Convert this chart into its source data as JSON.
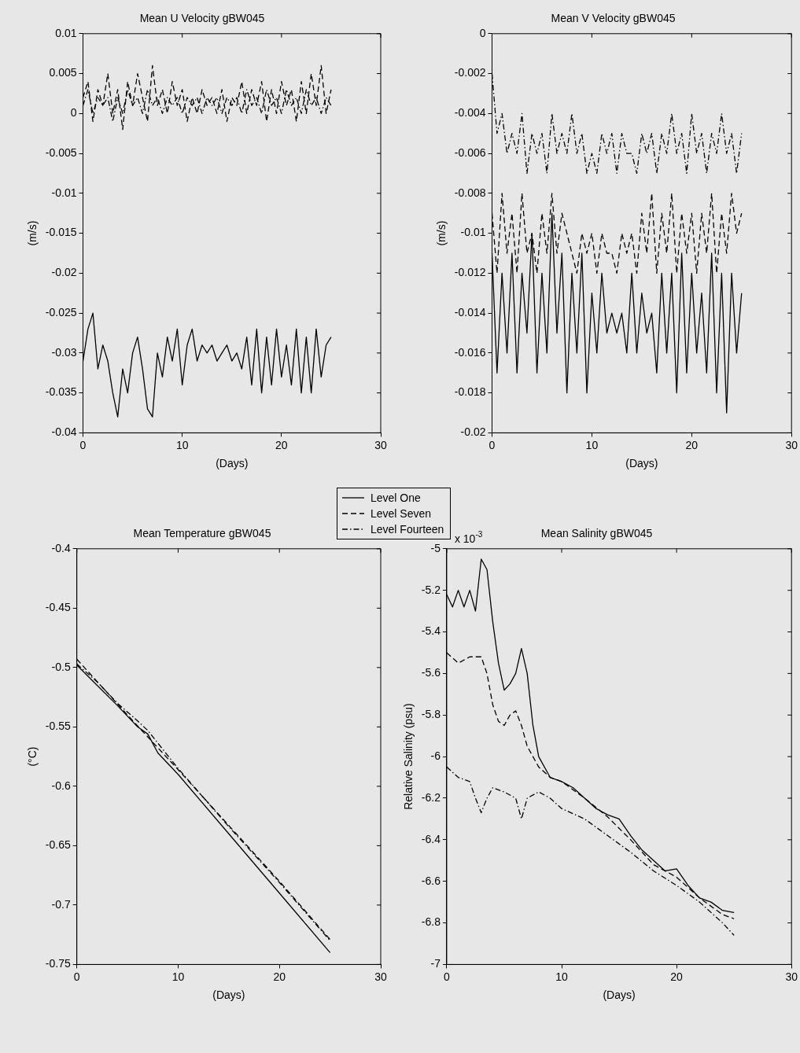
{
  "chart_data": [
    {
      "type": "line",
      "title": "Mean U Velocity gBW045",
      "xlabel": "(Days)",
      "ylabel": "(m/s)",
      "xlim": [
        0,
        30
      ],
      "xticks": [
        0,
        10,
        20,
        30
      ],
      "ylim": [
        -0.04,
        0.01
      ],
      "yticks": [
        -0.04,
        -0.035,
        -0.03,
        -0.025,
        -0.02,
        -0.015,
        -0.01,
        -0.005,
        0,
        0.005,
        0.01
      ],
      "legend": "bottom",
      "x": [
        0,
        0.5,
        1,
        1.5,
        2,
        2.5,
        3,
        3.5,
        4,
        4.5,
        5,
        5.5,
        6,
        6.5,
        7,
        7.5,
        8,
        8.5,
        9,
        9.5,
        10,
        10.5,
        11,
        11.5,
        12,
        12.5,
        13,
        13.5,
        14,
        14.5,
        15,
        15.5,
        16,
        16.5,
        17,
        17.5,
        18,
        18.5,
        19,
        19.5,
        20,
        20.5,
        21,
        21.5,
        22,
        22.5,
        23,
        23.5,
        24,
        24.5,
        25
      ],
      "series": [
        {
          "name": "Level One",
          "color": "#000000",
          "line_style": "solid",
          "values": [
            -0.031,
            -0.027,
            -0.025,
            -0.032,
            -0.029,
            -0.031,
            -0.035,
            -0.038,
            -0.032,
            -0.035,
            -0.03,
            -0.028,
            -0.032,
            -0.037,
            -0.038,
            -0.03,
            -0.033,
            -0.028,
            -0.031,
            -0.027,
            -0.034,
            -0.029,
            -0.027,
            -0.031,
            -0.029,
            -0.03,
            -0.029,
            -0.031,
            -0.03,
            -0.029,
            -0.031,
            -0.03,
            -0.032,
            -0.028,
            -0.034,
            -0.027,
            -0.035,
            -0.028,
            -0.034,
            -0.027,
            -0.033,
            -0.029,
            -0.034,
            -0.027,
            -0.035,
            -0.028,
            -0.035,
            -0.027,
            -0.033,
            -0.029,
            -0.028
          ]
        },
        {
          "name": "Level Seven",
          "color": "#000000",
          "line_style": "dashed",
          "values": [
            0.002,
            0.004,
            -0.001,
            0.003,
            0.001,
            0.005,
            0.0,
            0.003,
            -0.002,
            0.004,
            0.001,
            0.005,
            0.002,
            -0.001,
            0.006,
            0.001,
            0.003,
            0.0,
            0.004,
            0.001,
            0.003,
            -0.001,
            0.002,
            0.0,
            0.003,
            0.001,
            0.002,
            0.0,
            0.003,
            -0.001,
            0.002,
            0.001,
            0.004,
            0.0,
            0.003,
            0.001,
            0.004,
            -0.001,
            0.003,
            0.0,
            0.004,
            0.001,
            0.003,
            -0.001,
            0.004,
            0.0,
            0.005,
            0.001,
            0.006,
            0.0,
            0.003
          ]
        },
        {
          "name": "Level Fourteen",
          "color": "#000000",
          "line_style": "dashdot",
          "values": [
            0.001,
            0.003,
            0.0,
            0.002,
            0.001,
            0.002,
            -0.001,
            0.002,
            0.0,
            0.003,
            0.001,
            0.002,
            0.0,
            0.003,
            0.001,
            0.002,
            0.0,
            0.002,
            0.001,
            0.002,
            0.0,
            0.002,
            0.001,
            0.002,
            0.0,
            0.002,
            0.001,
            0.002,
            0.0,
            0.002,
            0.001,
            0.002,
            0.0,
            0.003,
            0.001,
            0.002,
            0.0,
            0.003,
            0.001,
            0.002,
            0.0,
            0.003,
            0.001,
            0.002,
            0.0,
            0.003,
            0.001,
            0.002,
            0.0,
            0.002,
            0.001
          ]
        }
      ]
    },
    {
      "type": "line",
      "title": "Mean V Velocity gBW045",
      "xlabel": "(Days)",
      "ylabel": "(m/s)",
      "xlim": [
        0,
        30
      ],
      "xticks": [
        0,
        10,
        20,
        30
      ],
      "ylim": [
        -0.02,
        0
      ],
      "yticks": [
        -0.02,
        -0.018,
        -0.016,
        -0.014,
        -0.012,
        -0.01,
        -0.008,
        -0.006,
        -0.004,
        -0.002,
        0
      ],
      "x": [
        0,
        0.5,
        1,
        1.5,
        2,
        2.5,
        3,
        3.5,
        4,
        4.5,
        5,
        5.5,
        6,
        6.5,
        7,
        7.5,
        8,
        8.5,
        9,
        9.5,
        10,
        10.5,
        11,
        11.5,
        12,
        12.5,
        13,
        13.5,
        14,
        14.5,
        15,
        15.5,
        16,
        16.5,
        17,
        17.5,
        18,
        18.5,
        19,
        19.5,
        20,
        20.5,
        21,
        21.5,
        22,
        22.5,
        23,
        23.5,
        24,
        24.5,
        25
      ],
      "series": [
        {
          "color": "#000000",
          "line_style": "solid",
          "values": [
            -0.011,
            -0.017,
            -0.012,
            -0.016,
            -0.011,
            -0.017,
            -0.012,
            -0.015,
            -0.01,
            -0.017,
            -0.012,
            -0.016,
            -0.009,
            -0.015,
            -0.011,
            -0.018,
            -0.012,
            -0.016,
            -0.011,
            -0.018,
            -0.013,
            -0.016,
            -0.012,
            -0.015,
            -0.014,
            -0.015,
            -0.014,
            -0.016,
            -0.012,
            -0.016,
            -0.013,
            -0.015,
            -0.014,
            -0.017,
            -0.012,
            -0.016,
            -0.012,
            -0.018,
            -0.011,
            -0.017,
            -0.012,
            -0.016,
            -0.013,
            -0.017,
            -0.011,
            -0.018,
            -0.012,
            -0.019,
            -0.012,
            -0.016,
            -0.013
          ]
        },
        {
          "color": "#000000",
          "line_style": "dashed",
          "values": [
            -0.009,
            -0.012,
            -0.008,
            -0.011,
            -0.009,
            -0.012,
            -0.008,
            -0.011,
            -0.01,
            -0.012,
            -0.009,
            -0.011,
            -0.008,
            -0.011,
            -0.009,
            -0.01,
            -0.011,
            -0.012,
            -0.01,
            -0.011,
            -0.01,
            -0.012,
            -0.01,
            -0.011,
            -0.011,
            -0.012,
            -0.01,
            -0.011,
            -0.01,
            -0.012,
            -0.009,
            -0.011,
            -0.008,
            -0.012,
            -0.009,
            -0.011,
            -0.008,
            -0.012,
            -0.009,
            -0.011,
            -0.009,
            -0.012,
            -0.009,
            -0.011,
            -0.008,
            -0.012,
            -0.009,
            -0.011,
            -0.008,
            -0.01,
            -0.009
          ]
        },
        {
          "color": "#000000",
          "line_style": "dashdot",
          "values": [
            -0.002,
            -0.005,
            -0.004,
            -0.006,
            -0.005,
            -0.006,
            -0.004,
            -0.007,
            -0.005,
            -0.006,
            -0.005,
            -0.007,
            -0.004,
            -0.006,
            -0.005,
            -0.006,
            -0.004,
            -0.006,
            -0.005,
            -0.007,
            -0.006,
            -0.007,
            -0.005,
            -0.006,
            -0.005,
            -0.007,
            -0.005,
            -0.006,
            -0.006,
            -0.007,
            -0.005,
            -0.006,
            -0.005,
            -0.007,
            -0.005,
            -0.006,
            -0.004,
            -0.006,
            -0.005,
            -0.007,
            -0.004,
            -0.006,
            -0.005,
            -0.007,
            -0.005,
            -0.006,
            -0.004,
            -0.006,
            -0.005,
            -0.007,
            -0.005
          ]
        }
      ]
    },
    {
      "type": "line",
      "title": "Mean Temperature gBW045",
      "xlabel": "(Days)",
      "ylabel": "(°C)",
      "xlim": [
        0,
        30
      ],
      "xticks": [
        0,
        10,
        20,
        30
      ],
      "ylim": [
        -0.75,
        -0.4
      ],
      "yticks": [
        -0.75,
        -0.7,
        -0.65,
        -0.6,
        -0.55,
        -0.5,
        -0.45,
        -0.4
      ],
      "series": [
        {
          "color": "#000000",
          "line_style": "solid",
          "x": [
            0,
            2,
            4,
            6,
            7,
            8,
            10,
            15,
            20,
            25
          ],
          "values": [
            -0.498,
            -0.515,
            -0.532,
            -0.55,
            -0.556,
            -0.572,
            -0.59,
            -0.64,
            -0.69,
            -0.74
          ]
        },
        {
          "color": "#000000",
          "line_style": "dashed",
          "x": [
            0,
            5,
            10,
            15,
            20,
            25
          ],
          "values": [
            -0.493,
            -0.54,
            -0.586,
            -0.633,
            -0.68,
            -0.729
          ]
        },
        {
          "color": "#000000",
          "line_style": "dashdot",
          "x": [
            0,
            2,
            4,
            6,
            7,
            10,
            15,
            20,
            25
          ],
          "values": [
            -0.497,
            -0.512,
            -0.53,
            -0.545,
            -0.553,
            -0.585,
            -0.634,
            -0.681,
            -0.73
          ]
        }
      ]
    },
    {
      "type": "line",
      "title": "Mean Salinity gBW045",
      "xlabel": "(Days)",
      "ylabel": "Relative Salinity (psu)",
      "annotations": [
        "x 10$^{-3}$"
      ],
      "xlim": [
        0,
        30
      ],
      "xticks": [
        0,
        10,
        20,
        30
      ],
      "ylim": [
        -7,
        -5
      ],
      "yticks": [
        -7,
        -6.8,
        -6.6,
        -6.4,
        -6.2,
        -6,
        -5.8,
        -5.6,
        -5.4,
        -5.2,
        -5
      ],
      "series": [
        {
          "color": "#000000",
          "line_style": "solid",
          "x": [
            0,
            0.5,
            1,
            1.5,
            2,
            2.5,
            3,
            3.5,
            4,
            4.5,
            5,
            5.5,
            6,
            6.5,
            7,
            7.5,
            8,
            9,
            10,
            11,
            12,
            13,
            14,
            15,
            16,
            17,
            18,
            19,
            20,
            21,
            22,
            23,
            24,
            25
          ],
          "values": [
            -5.22,
            -5.28,
            -5.2,
            -5.28,
            -5.2,
            -5.3,
            -5.05,
            -5.1,
            -5.35,
            -5.55,
            -5.68,
            -5.65,
            -5.6,
            -5.48,
            -5.6,
            -5.85,
            -6.0,
            -6.1,
            -6.12,
            -6.15,
            -6.2,
            -6.25,
            -6.28,
            -6.3,
            -6.38,
            -6.45,
            -6.5,
            -6.55,
            -6.54,
            -6.62,
            -6.68,
            -6.7,
            -6.74,
            -6.75
          ]
        },
        {
          "color": "#000000",
          "line_style": "dashed",
          "x": [
            0,
            1,
            2,
            3,
            3.5,
            4,
            4.5,
            5,
            5.5,
            6,
            6.5,
            7,
            8,
            9,
            10,
            12,
            14,
            16,
            18,
            20,
            22,
            24,
            25
          ],
          "values": [
            -5.5,
            -5.55,
            -5.52,
            -5.52,
            -5.6,
            -5.75,
            -5.83,
            -5.85,
            -5.8,
            -5.78,
            -5.85,
            -5.95,
            -6.05,
            -6.1,
            -6.12,
            -6.2,
            -6.29,
            -6.4,
            -6.52,
            -6.58,
            -6.68,
            -6.76,
            -6.78
          ]
        },
        {
          "color": "#000000",
          "line_style": "dashdot",
          "x": [
            0,
            1,
            2,
            2.5,
            3,
            3.5,
            4,
            5,
            6,
            6.5,
            7,
            8,
            9,
            10,
            12,
            14,
            16,
            18,
            20,
            22,
            24,
            25
          ],
          "values": [
            -6.05,
            -6.1,
            -6.12,
            -6.2,
            -6.27,
            -6.2,
            -6.15,
            -6.17,
            -6.2,
            -6.3,
            -6.2,
            -6.17,
            -6.2,
            -6.25,
            -6.3,
            -6.38,
            -6.46,
            -6.55,
            -6.62,
            -6.7,
            -6.8,
            -6.86
          ]
        }
      ]
    }
  ]
}
